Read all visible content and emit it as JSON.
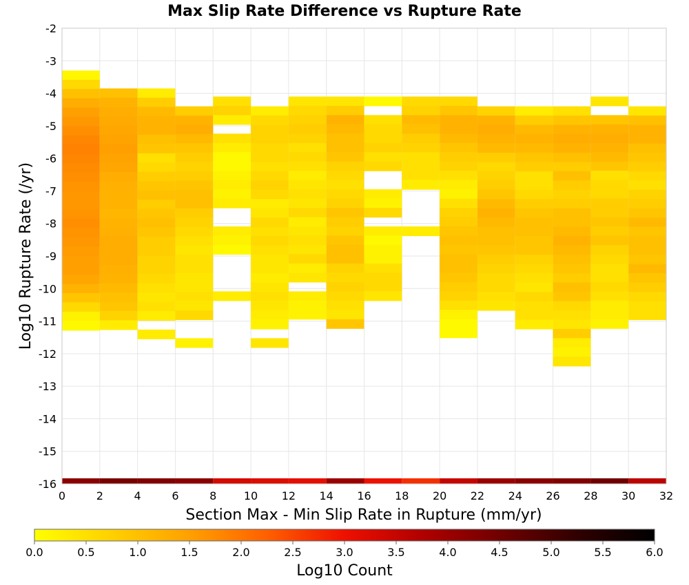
{
  "chart_data": {
    "type": "heatmap",
    "title": "Max Slip Rate Difference vs Rupture Rate",
    "xlabel": "Section Max - Min Slip Rate in Rupture (mm/yr)",
    "ylabel": "Log10 Rupture Rate (/yr)",
    "xlim": [
      0,
      32
    ],
    "ylim": [
      -16,
      -2
    ],
    "xticks": [
      "0",
      "2",
      "4",
      "6",
      "8",
      "10",
      "12",
      "14",
      "16",
      "18",
      "20",
      "22",
      "24",
      "26",
      "28",
      "30",
      "32"
    ],
    "yticks": [
      "-2",
      "-3",
      "-4",
      "-5",
      "-6",
      "-7",
      "-8",
      "-9",
      "-10",
      "-11",
      "-12",
      "-13",
      "-14",
      "-15",
      "-16"
    ],
    "grid": true,
    "x_bin_width": 2,
    "y_bin_height": 0.285,
    "colorbar": {
      "label": "Log10 Count",
      "min": 0.0,
      "max": 6.0,
      "ticks": [
        "0.0",
        "0.5",
        "1.0",
        "1.5",
        "2.0",
        "2.5",
        "3.0",
        "3.5",
        "4.0",
        "4.5",
        "5.0",
        "5.5",
        "6.0"
      ],
      "colors": [
        "#ffff00",
        "#ffd000",
        "#ffa000",
        "#ff6000",
        "#ee1000",
        "#b00000",
        "#700000",
        "#300000",
        "#000000"
      ]
    },
    "columns": [
      {
        "x": 0,
        "y_top": -3.3,
        "values": [
          0.15,
          0.6,
          1.0,
          1.3,
          1.5,
          1.6,
          1.7,
          1.8,
          1.85,
          1.8,
          1.75,
          1.7,
          1.65,
          1.6,
          1.6,
          1.65,
          1.7,
          1.65,
          1.6,
          1.55,
          1.5,
          1.5,
          1.4,
          1.2,
          0.9,
          0.6,
          0.2,
          0.1
        ]
      },
      {
        "x": 2,
        "y_top": -3.85,
        "values": [
          1.0,
          1.2,
          1.3,
          1.35,
          1.4,
          1.45,
          1.5,
          1.45,
          1.4,
          1.3,
          1.25,
          1.2,
          1.2,
          1.15,
          1.2,
          1.25,
          1.3,
          1.3,
          1.3,
          1.25,
          1.2,
          1.1,
          1.0,
          0.9,
          0.7,
          0.3
        ]
      },
      {
        "x": 4,
        "y_top": -3.85,
        "values": [
          0.3,
          0.8,
          1.1,
          1.2,
          1.2,
          1.0,
          0.9,
          0.5,
          0.6,
          0.8,
          0.9,
          1.0,
          0.8,
          0.9,
          1.0,
          0.9,
          0.8,
          0.8,
          0.7,
          0.7,
          0.6,
          0.5,
          0.4,
          0.5,
          0.3,
          null,
          0.3
        ]
      },
      {
        "x": 6,
        "y_top": -4.4,
        "values": [
          0.8,
          1.2,
          1.3,
          1.1,
          0.9,
          0.8,
          0.7,
          0.8,
          0.9,
          1.0,
          1.0,
          0.8,
          0.7,
          0.6,
          0.5,
          0.4,
          0.5,
          0.5,
          0.4,
          0.4,
          0.5,
          0.4,
          0.6,
          null,
          null,
          0.2
        ]
      },
      {
        "x": 8,
        "y_top": -4.1,
        "values": [
          0.5,
          0.7,
          0.3,
          null,
          0.5,
          0.3,
          0.1,
          0.1,
          0.2,
          0.3,
          0.2,
          0.3,
          null,
          null,
          0.3,
          0.2,
          0.1,
          null,
          null,
          null,
          null,
          0.3
        ]
      },
      {
        "x": 10,
        "y_top": -4.4,
        "values": [
          0.3,
          0.6,
          0.7,
          0.7,
          0.6,
          0.6,
          0.5,
          0.6,
          0.7,
          0.6,
          0.3,
          0.4,
          0.6,
          0.5,
          0.6,
          0.5,
          0.4,
          0.4,
          0.3,
          0.4,
          0.5,
          0.4,
          0.3,
          0.2,
          null,
          0.4
        ]
      },
      {
        "x": 12,
        "y_top": -4.1,
        "values": [
          0.4,
          0.6,
          0.7,
          0.8,
          0.7,
          0.5,
          0.6,
          0.5,
          0.3,
          0.4,
          0.5,
          0.4,
          0.6,
          0.3,
          0.4,
          0.5,
          0.4,
          0.6,
          0.3,
          0.4,
          null,
          0.3,
          0.2,
          0.2
        ]
      },
      {
        "x": 14,
        "y_top": -4.1,
        "values": [
          0.4,
          0.8,
          1.2,
          1.1,
          1.0,
          1.0,
          0.9,
          0.7,
          0.6,
          0.5,
          0.6,
          0.7,
          0.9,
          0.8,
          0.7,
          0.9,
          1.0,
          1.0,
          0.7,
          0.6,
          0.7,
          0.6,
          0.5,
          0.4,
          0.9
        ]
      },
      {
        "x": 16,
        "y_top": -4.1,
        "values": [
          0.1,
          null,
          0.5,
          0.6,
          0.6,
          0.7,
          0.5,
          0.6,
          null,
          null,
          0.3,
          0.2,
          0.6,
          null,
          0.3,
          0.1,
          0.2,
          0.2,
          0.5,
          0.6,
          0.6,
          0.4
        ]
      },
      {
        "x": 18,
        "y_top": -4.1,
        "values": [
          0.6,
          0.7,
          1.1,
          1.0,
          0.8,
          0.7,
          0.5,
          0.5,
          0.5,
          0.3,
          null,
          null,
          null,
          null,
          0.3
        ]
      },
      {
        "x": 20,
        "y_top": -4.1,
        "values": [
          0.6,
          0.9,
          1.2,
          1.2,
          1.1,
          0.9,
          0.8,
          0.7,
          0.5,
          0.3,
          0.2,
          0.5,
          0.7,
          0.8,
          0.9,
          1.0,
          0.9,
          1.0,
          1.0,
          0.9,
          0.8,
          0.7,
          0.5,
          0.2,
          0.1,
          0.1
        ]
      },
      {
        "x": 22,
        "y_top": -4.4,
        "values": [
          0.7,
          1.2,
          1.3,
          1.2,
          1.1,
          0.8,
          0.6,
          0.7,
          0.8,
          0.9,
          1.1,
          1.2,
          1.1,
          1.0,
          1.0,
          0.9,
          0.8,
          0.7,
          0.6,
          0.6,
          0.5,
          0.4
        ]
      },
      {
        "x": 24,
        "y_top": -4.4,
        "values": [
          0.3,
          0.8,
          1.1,
          1.2,
          1.1,
          0.9,
          0.8,
          0.5,
          0.5,
          0.6,
          0.8,
          0.9,
          1.0,
          1.0,
          0.9,
          0.9,
          0.7,
          0.6,
          0.5,
          0.4,
          0.6,
          0.5,
          0.5,
          0.3
        ]
      },
      {
        "x": 26,
        "y_top": -4.4,
        "values": [
          0.5,
          0.9,
          1.2,
          1.3,
          1.2,
          1.0,
          0.8,
          1.0,
          0.8,
          0.7,
          0.8,
          1.0,
          1.0,
          1.1,
          1.2,
          1.1,
          1.0,
          0.9,
          0.8,
          1.0,
          0.9,
          0.6,
          0.5,
          0.4,
          0.8,
          0.3,
          0.2,
          0.4
        ]
      },
      {
        "x": 28,
        "y_top": -4.1,
        "values": [
          0.4,
          null,
          0.9,
          1.2,
          1.3,
          1.2,
          1.1,
          0.9,
          0.5,
          0.6,
          0.6,
          0.8,
          0.8,
          0.9,
          0.8,
          0.9,
          0.7,
          0.6,
          0.5,
          0.5,
          0.6,
          0.5,
          0.3,
          0.3,
          0.2
        ]
      },
      {
        "x": 30,
        "y_top": -4.4,
        "values": [
          0.4,
          1.0,
          1.2,
          1.2,
          1.0,
          0.9,
          0.8,
          0.6,
          0.5,
          0.7,
          0.8,
          0.9,
          1.1,
          0.9,
          1.0,
          1.0,
          0.9,
          1.1,
          0.9,
          0.8,
          0.6,
          0.5,
          0.5
        ]
      }
    ],
    "bottom_row": {
      "y": -16,
      "values": [
        4.2,
        4.4,
        4.3,
        4.2,
        3.3,
        3.2,
        3.1,
        4.0,
        3.0,
        2.7,
        3.5,
        4.0,
        4.2,
        4.3,
        4.5,
        3.6
      ]
    }
  }
}
